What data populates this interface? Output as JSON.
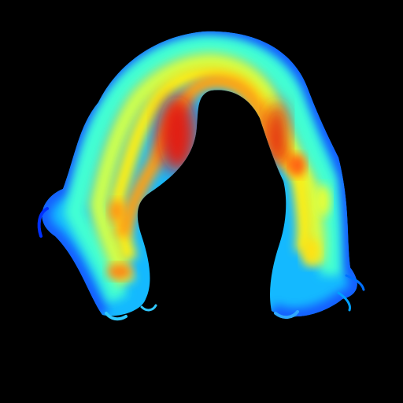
{
  "image": {
    "subject": "hair-heatmap",
    "background_color": "#000000",
    "colormap": "jet",
    "colormap_stops": [
      "#00008f",
      "#0040ff",
      "#00c8ff",
      "#40ffbf",
      "#c0ff40",
      "#ffff00",
      "#ff9000",
      "#ff3000",
      "#c80000"
    ]
  }
}
